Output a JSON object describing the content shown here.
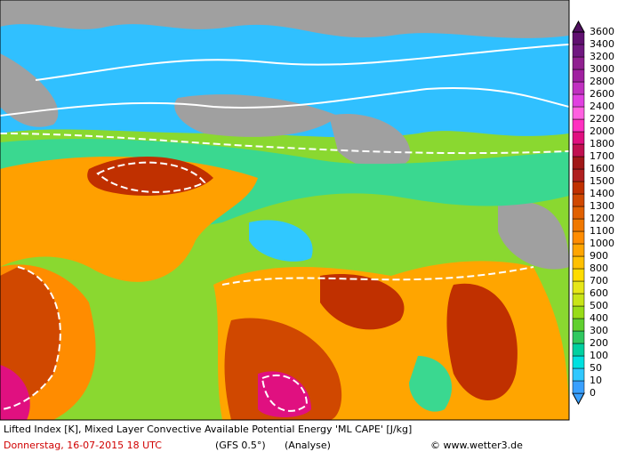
{
  "caption": {
    "line1": "Lifted Index [K], Mixed Layer Convective Available Potential Energy 'ML CAPE' [J/kg]",
    "date": "Donnerstag, 16-07-2015   18 UTC",
    "model": "(GFS 0.5°)",
    "run": "(Analyse)",
    "credit": "© www.wetter3.de"
  },
  "colorbar": {
    "labels": [
      "0",
      "10",
      "50",
      "100",
      "200",
      "300",
      "400",
      "500",
      "600",
      "700",
      "800",
      "900",
      "1000",
      "1100",
      "1200",
      "1300",
      "1400",
      "1500",
      "1600",
      "1700",
      "1800",
      "2000",
      "2200",
      "2400",
      "2600",
      "2800",
      "3000",
      "3200",
      "3400",
      "3600"
    ],
    "colors": [
      "#3aa0ff",
      "#3aa0ff",
      "#30c8ff",
      "#00e0e0",
      "#00d0a0",
      "#30c860",
      "#60d030",
      "#98dc18",
      "#c8e418",
      "#e6e618",
      "#ffdc00",
      "#ffc000",
      "#ffa500",
      "#ff8c00",
      "#f07800",
      "#e06000",
      "#d04800",
      "#c03000",
      "#b02020",
      "#a01818",
      "#c01050",
      "#e01080",
      "#ff30c0",
      "#ff60e0",
      "#e040e0",
      "#c030c0",
      "#a020a0",
      "#902090",
      "#701880",
      "#601070",
      "#501060"
    ]
  }
}
